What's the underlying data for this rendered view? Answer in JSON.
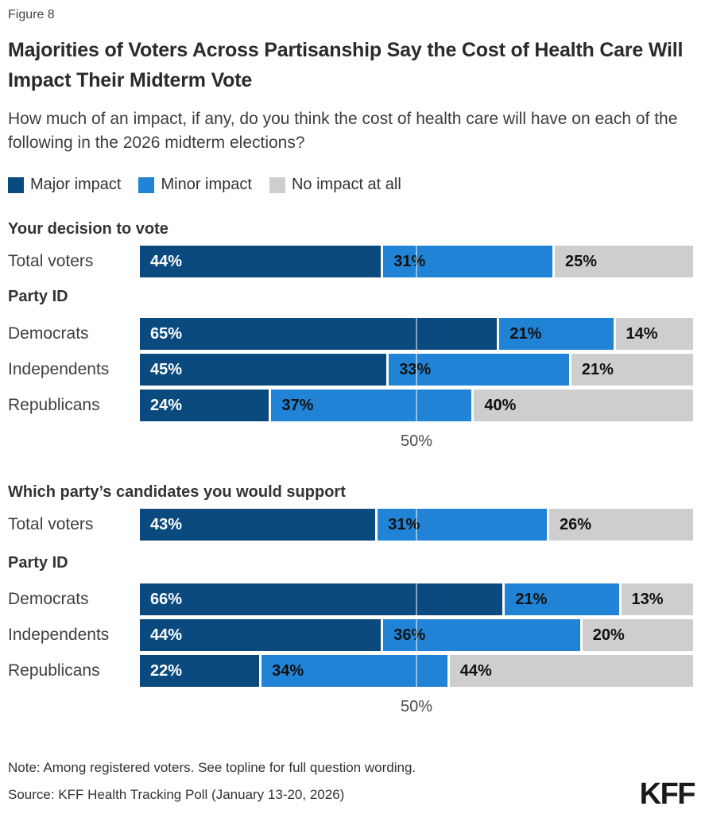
{
  "figure_label": "Figure 8",
  "title": "Majorities of Voters Across Partisanship Say the Cost of Health Care Will Impact Their Midterm Vote",
  "subtitle": "How much of an impact, if any, do you think the cost of health care will have on each of the following in the 2026 midterm elections?",
  "legend": [
    {
      "label": "Major impact",
      "color": "#0A4A7F"
    },
    {
      "label": "Minor impact",
      "color": "#2083D6"
    },
    {
      "label": "No impact at all",
      "color": "#CECECE"
    }
  ],
  "colors": {
    "major_impact": "#0A4A7F",
    "minor_impact": "#2083D6",
    "no_impact": "#CECECE",
    "bar_label_on_major": "#FFFFFF",
    "bar_label_on_other": "#111111",
    "title_text": "#2B2B2B"
  },
  "chart_data": [
    {
      "type": "bar",
      "stacked": true,
      "orientation": "horizontal",
      "title": "Your decision to vote",
      "group_label": "Party ID",
      "categories": [
        "Total voters",
        "Democrats",
        "Independents",
        "Republicans"
      ],
      "series": [
        {
          "name": "Major impact",
          "values": [
            44,
            65,
            45,
            24
          ]
        },
        {
          "name": "Minor impact",
          "values": [
            31,
            21,
            33,
            37
          ]
        },
        {
          "name": "No impact at all",
          "values": [
            25,
            14,
            21,
            40
          ]
        }
      ],
      "xlim": [
        0,
        100
      ],
      "x_ticks": [
        50
      ],
      "grid": "single line at 50%, legend top"
    },
    {
      "type": "bar",
      "stacked": true,
      "orientation": "horizontal",
      "title": "Which party’s candidates you would support",
      "group_label": "Party ID",
      "categories": [
        "Total voters",
        "Democrats",
        "Independents",
        "Republicans"
      ],
      "series": [
        {
          "name": "Major impact",
          "values": [
            43,
            66,
            44,
            22
          ]
        },
        {
          "name": "Minor impact",
          "values": [
            31,
            21,
            36,
            34
          ]
        },
        {
          "name": "No impact at all",
          "values": [
            26,
            13,
            20,
            44
          ]
        }
      ],
      "xlim": [
        0,
        100
      ],
      "x_ticks": [
        50
      ],
      "grid": "single line at 50%, legend top"
    }
  ],
  "note": "Note: Among registered voters. See topline for full question wording.",
  "source": "Source: KFF Health Tracking Poll (January 13-20, 2026)",
  "logo": "KFF"
}
